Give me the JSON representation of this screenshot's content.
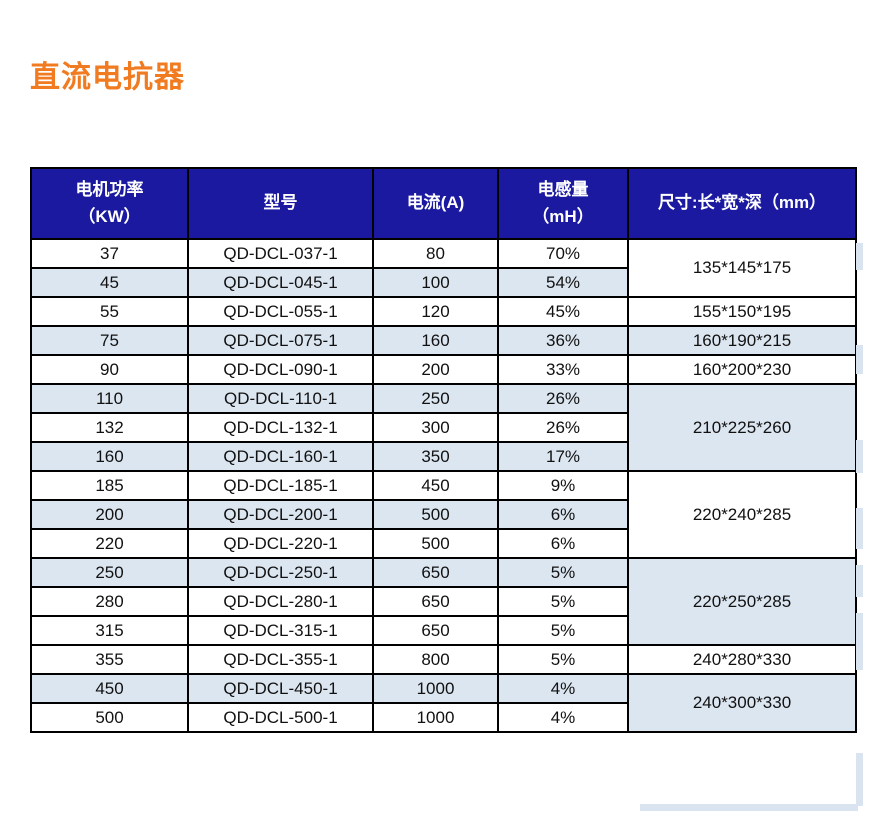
{
  "title": "直流电抗器",
  "colors": {
    "title_orange": "#F07B21",
    "header_blue": "#1A19A0",
    "alt_row_blue": "#DCE6F1",
    "border_black": "#000000"
  },
  "table": {
    "columns": [
      {
        "id": "power",
        "label_lines": [
          "电机功率",
          "（KW）"
        ]
      },
      {
        "id": "model",
        "label_lines": [
          "型号"
        ]
      },
      {
        "id": "current",
        "label_lines": [
          "电流(A)"
        ]
      },
      {
        "id": "inductance",
        "label_lines": [
          "电感量",
          "（mH）"
        ]
      },
      {
        "id": "dimensions",
        "label_lines": [
          "尺寸:长*宽*深（mm）"
        ]
      }
    ],
    "rows": [
      {
        "power": "37",
        "model": "QD-DCL-037-1",
        "current": "80",
        "inductance": "70%",
        "alt": false,
        "dim": {
          "text": "135*145*175",
          "rowspan": 2
        }
      },
      {
        "power": "45",
        "model": "QD-DCL-045-1",
        "current": "100",
        "inductance": "54%",
        "alt": true
      },
      {
        "power": "55",
        "model": "QD-DCL-055-1",
        "current": "120",
        "inductance": "45%",
        "alt": false,
        "dim": {
          "text": "155*150*195",
          "rowspan": 1
        }
      },
      {
        "power": "75",
        "model": "QD-DCL-075-1",
        "current": "160",
        "inductance": "36%",
        "alt": true,
        "dim": {
          "text": "160*190*215",
          "rowspan": 1
        }
      },
      {
        "power": "90",
        "model": "QD-DCL-090-1",
        "current": "200",
        "inductance": "33%",
        "alt": false,
        "dim": {
          "text": "160*200*230",
          "rowspan": 1
        }
      },
      {
        "power": "110",
        "model": "QD-DCL-110-1",
        "current": "250",
        "inductance": "26%",
        "alt": true,
        "dim": {
          "text": "210*225*260",
          "rowspan": 3
        }
      },
      {
        "power": "132",
        "model": "QD-DCL-132-1",
        "current": "300",
        "inductance": "26%",
        "alt": false
      },
      {
        "power": "160",
        "model": "QD-DCL-160-1",
        "current": "350",
        "inductance": "17%",
        "alt": true
      },
      {
        "power": "185",
        "model": "QD-DCL-185-1",
        "current": "450",
        "inductance": "9%",
        "alt": false,
        "dim": {
          "text": "220*240*285",
          "rowspan": 3
        }
      },
      {
        "power": "200",
        "model": "QD-DCL-200-1",
        "current": "500",
        "inductance": "6%",
        "alt": true
      },
      {
        "power": "220",
        "model": "QD-DCL-220-1",
        "current": "500",
        "inductance": "6%",
        "alt": false
      },
      {
        "power": "250",
        "model": "QD-DCL-250-1",
        "current": "650",
        "inductance": "5%",
        "alt": true,
        "dim": {
          "text": "220*250*285",
          "rowspan": 3
        }
      },
      {
        "power": "280",
        "model": "QD-DCL-280-1",
        "current": "650",
        "inductance": "5%",
        "alt": false
      },
      {
        "power": "315",
        "model": "QD-DCL-315-1",
        "current": "650",
        "inductance": "5%",
        "alt": false
      },
      {
        "power": "355",
        "model": "QD-DCL-355-1",
        "current": "800",
        "inductance": "5%",
        "alt": false,
        "dim": {
          "text": "240*280*330",
          "rowspan": 1
        }
      },
      {
        "power": "450",
        "model": "QD-DCL-450-1",
        "current": "1000",
        "inductance": "4%",
        "alt": true,
        "dim": {
          "text": "240*300*330",
          "rowspan": 2
        }
      },
      {
        "power": "500",
        "model": "QD-DCL-500-1",
        "current": "1000",
        "inductance": "4%",
        "alt": false
      }
    ]
  }
}
